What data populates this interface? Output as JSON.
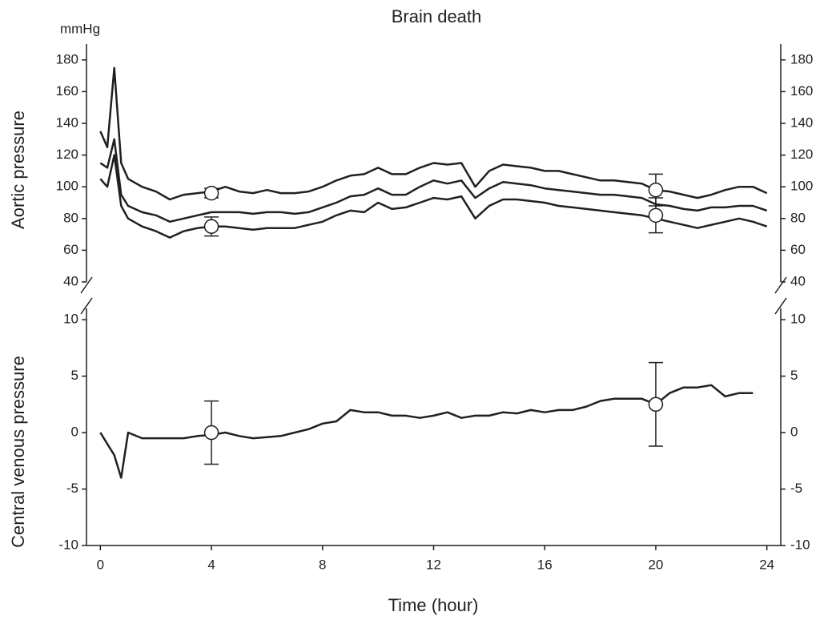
{
  "chart_data": [
    {
      "type": "line",
      "title": "Brain death",
      "unit_label": "mmHg",
      "ylabel": "Aortic pressure",
      "xlim": [
        -0.5,
        24.5
      ],
      "ylim": [
        40,
        190
      ],
      "yticks": [
        40,
        60,
        80,
        100,
        120,
        140,
        160,
        180
      ],
      "x": [
        0,
        0.25,
        0.5,
        0.75,
        1,
        1.5,
        2,
        2.5,
        3,
        3.5,
        4,
        4.5,
        5,
        5.5,
        6,
        6.5,
        7,
        7.5,
        8,
        8.5,
        9,
        9.5,
        10,
        10.5,
        11,
        11.5,
        12,
        12.5,
        13,
        13.5,
        14,
        14.5,
        15,
        15.5,
        16,
        16.5,
        17,
        17.5,
        18,
        18.5,
        19,
        19.5,
        20,
        20.5,
        21,
        21.5,
        22,
        22.5,
        23,
        23.5,
        24
      ],
      "series": [
        {
          "color": "#231f20",
          "values": [
            135,
            125,
            175,
            115,
            105,
            100,
            97,
            92,
            95,
            96,
            97,
            100,
            97,
            96,
            98,
            96,
            96,
            97,
            100,
            104,
            107,
            108,
            112,
            108,
            108,
            112,
            115,
            114,
            115,
            100,
            110,
            114,
            113,
            112,
            110,
            110,
            108,
            106,
            104,
            104,
            103,
            102,
            98,
            97,
            95,
            93,
            95,
            98,
            100,
            100,
            96
          ]
        },
        {
          "color": "#231f20",
          "values": [
            115,
            112,
            130,
            95,
            88,
            84,
            82,
            78,
            80,
            82,
            84,
            84,
            84,
            83,
            84,
            84,
            83,
            84,
            87,
            90,
            94,
            95,
            99,
            95,
            95,
            100,
            104,
            102,
            104,
            93,
            99,
            103,
            102,
            101,
            99,
            98,
            97,
            96,
            95,
            95,
            94,
            93,
            89,
            88,
            86,
            85,
            87,
            87,
            88,
            88,
            85
          ]
        },
        {
          "color": "#231f20",
          "values": [
            105,
            100,
            120,
            88,
            80,
            75,
            72,
            68,
            72,
            74,
            75,
            75,
            74,
            73,
            74,
            74,
            74,
            76,
            78,
            82,
            85,
            84,
            90,
            86,
            87,
            90,
            93,
            92,
            94,
            80,
            88,
            92,
            92,
            91,
            90,
            88,
            87,
            86,
            85,
            84,
            83,
            82,
            80,
            78,
            76,
            74,
            76,
            78,
            80,
            78,
            75
          ]
        }
      ],
      "markers": {
        "x": [
          4,
          20
        ],
        "series": [
          {
            "values": [
              96,
              98
            ],
            "errors": [
              3,
              10
            ]
          },
          {
            "values": [
              75,
              82
            ],
            "errors": [
              6,
              11
            ]
          }
        ]
      }
    },
    {
      "type": "line",
      "ylabel": "Central venous pressure",
      "xlabel": "Time (hour)",
      "xlim": [
        -0.5,
        24.5
      ],
      "ylim": [
        -10,
        11
      ],
      "yticks": [
        -10,
        -5,
        0,
        5,
        10
      ],
      "xticks": [
        0,
        4,
        8,
        12,
        16,
        20,
        24
      ],
      "x": [
        0,
        0.25,
        0.5,
        0.75,
        1,
        1.5,
        2,
        2.5,
        3,
        3.5,
        4,
        4.5,
        5,
        5.5,
        6,
        6.5,
        7,
        7.5,
        8,
        8.5,
        9,
        9.5,
        10,
        10.5,
        11,
        11.5,
        12,
        12.5,
        13,
        13.5,
        14,
        14.5,
        15,
        15.5,
        16,
        16.5,
        17,
        17.5,
        18,
        18.5,
        19,
        19.5,
        20,
        20.5,
        21,
        21.5,
        22,
        22.5,
        23,
        23.5,
        24
      ],
      "series": [
        {
          "color": "#231f20",
          "values": [
            0,
            -1,
            -2,
            -4,
            0,
            -0.5,
            -0.5,
            -0.5,
            -0.5,
            -0.3,
            -0.2,
            0,
            -0.3,
            -0.5,
            -0.4,
            -0.3,
            0,
            0.3,
            0.8,
            1,
            2,
            1.8,
            1.8,
            1.5,
            1.5,
            1.3,
            1.5,
            1.8,
            1.3,
            1.5,
            1.5,
            1.8,
            1.7,
            2,
            1.8,
            2,
            2,
            2.3,
            2.8,
            3,
            3,
            3,
            2.5,
            3.5,
            4,
            4,
            4.2,
            3.2,
            3.5,
            3.5,
            null
          ]
        }
      ],
      "markers": {
        "x": [
          4,
          20
        ],
        "series": [
          {
            "values": [
              0,
              2.5
            ],
            "errors": [
              2.8,
              3.7
            ]
          }
        ]
      }
    }
  ]
}
